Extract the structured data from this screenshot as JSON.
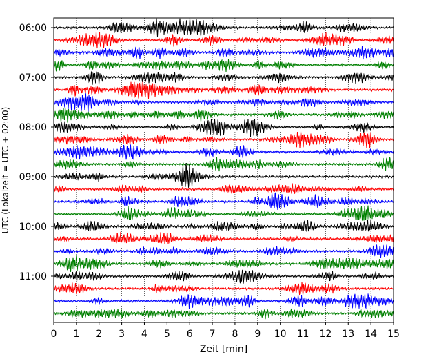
{
  "chart_data": {
    "type": "line",
    "title": "",
    "xlabel": "Zeit  [min]",
    "ylabel": "UTC (Lokalzeit = UTC + 02:00)",
    "xlim": [
      0,
      15
    ],
    "x_ticks": [
      "0",
      "1",
      "2",
      "3",
      "4",
      "5",
      "6",
      "7",
      "8",
      "9",
      "10",
      "11",
      "12",
      "13",
      "14",
      "15"
    ],
    "y_ticks": [
      "06:00",
      "07:00",
      "08:00",
      "09:00",
      "10:00",
      "11:00"
    ],
    "grid": "vertical dotted",
    "trace_colors": [
      "#000000",
      "#ff0000",
      "#0000ff",
      "#008000"
    ],
    "traces": [
      {
        "start": "06:00",
        "color": "#000000"
      },
      {
        "start": "06:15",
        "color": "#ff0000"
      },
      {
        "start": "06:30",
        "color": "#0000ff"
      },
      {
        "start": "06:45",
        "color": "#008000"
      },
      {
        "start": "07:00",
        "color": "#000000"
      },
      {
        "start": "07:15",
        "color": "#ff0000"
      },
      {
        "start": "07:30",
        "color": "#0000ff"
      },
      {
        "start": "07:45",
        "color": "#008000"
      },
      {
        "start": "08:00",
        "color": "#000000"
      },
      {
        "start": "08:15",
        "color": "#ff0000"
      },
      {
        "start": "08:30",
        "color": "#0000ff"
      },
      {
        "start": "08:45",
        "color": "#008000"
      },
      {
        "start": "09:00",
        "color": "#000000"
      },
      {
        "start": "09:15",
        "color": "#ff0000"
      },
      {
        "start": "09:30",
        "color": "#0000ff"
      },
      {
        "start": "09:45",
        "color": "#008000"
      },
      {
        "start": "10:00",
        "color": "#000000"
      },
      {
        "start": "10:15",
        "color": "#ff0000"
      },
      {
        "start": "10:30",
        "color": "#0000ff"
      },
      {
        "start": "10:45",
        "color": "#008000"
      },
      {
        "start": "11:00",
        "color": "#000000"
      },
      {
        "start": "11:15",
        "color": "#ff0000"
      },
      {
        "start": "11:30",
        "color": "#0000ff"
      },
      {
        "start": "11:45",
        "color": "#008000"
      }
    ]
  }
}
